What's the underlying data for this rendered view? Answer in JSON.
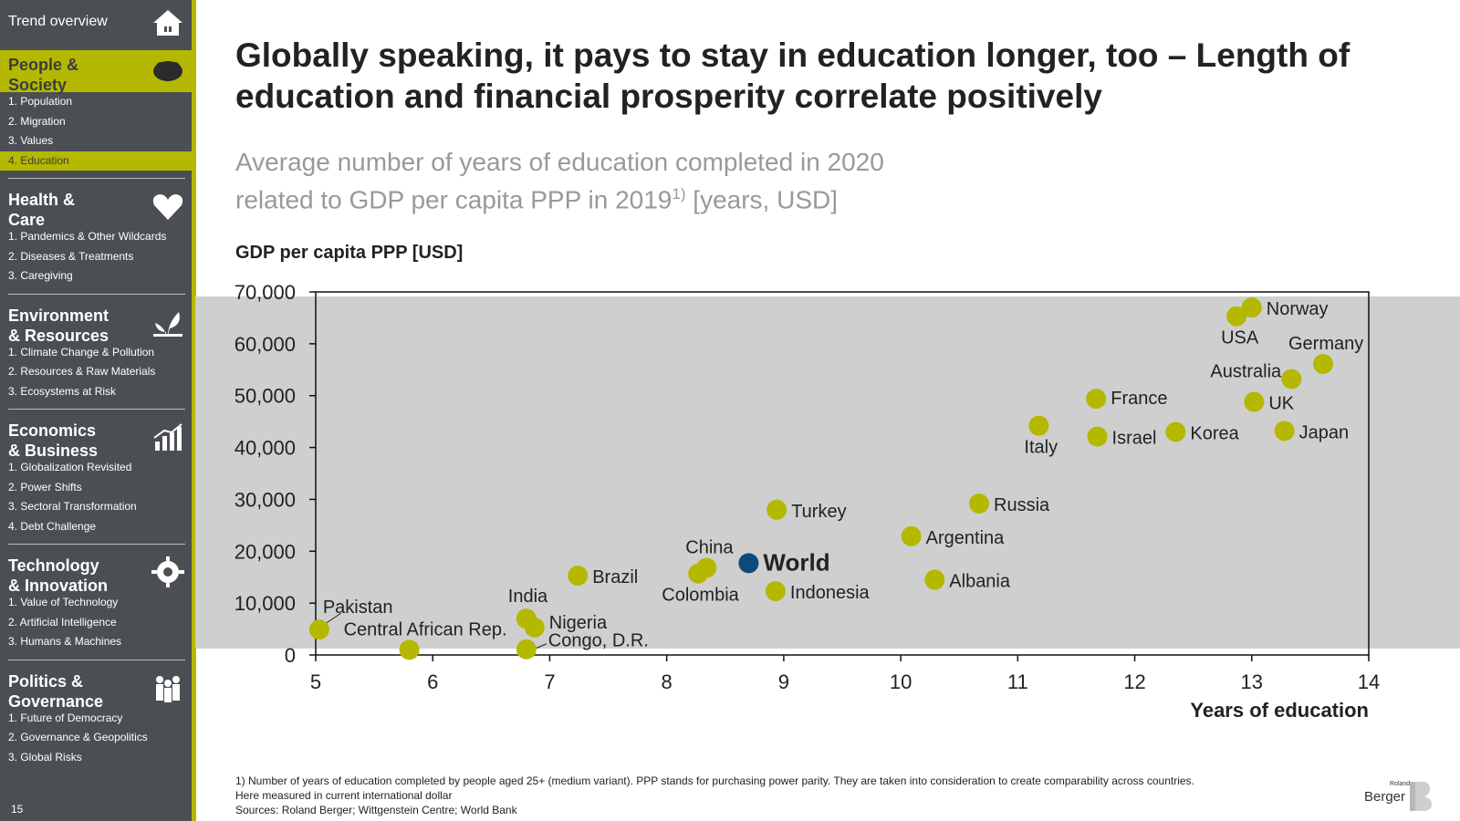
{
  "sidebar": {
    "trend_overview": "Trend overview",
    "page_number": "15",
    "sections": [
      {
        "title_line1": "People &",
        "title_line2": "Society",
        "icon": "leaf-head-icon",
        "items": [
          "1. Population",
          "2. Migration",
          "3. Values",
          "4. Education"
        ],
        "active_item": 3
      },
      {
        "title_line1": "Health &",
        "title_line2": "Care",
        "icon": "heart-icon",
        "items": [
          "1. Pandemics & Other Wildcards",
          "2. Diseases & Treatments",
          "3. Caregiving"
        ]
      },
      {
        "title_line1": "Environment",
        "title_line2": "& Resources",
        "icon": "plant-icon",
        "items": [
          "1. Climate Change & Pollution",
          "2. Resources & Raw Materials",
          "3. Ecosystems at Risk"
        ]
      },
      {
        "title_line1": "Economics",
        "title_line2": "& Business",
        "icon": "growth-chart-icon",
        "items": [
          "1. Globalization Revisited",
          "2. Power Shifts",
          "3. Sectoral Transformation",
          "4. Debt Challenge"
        ]
      },
      {
        "title_line1": "Technology",
        "title_line2": "& Innovation",
        "icon": "gear-head-icon",
        "items": [
          "1. Value of Technology",
          "2. Artificial Intelligence",
          "3. Humans & Machines"
        ]
      },
      {
        "title_line1": "Politics &",
        "title_line2": "Governance",
        "icon": "people-group-icon",
        "items": [
          "1. Future of Democracy",
          "2. Governance & Geopolitics",
          "3. Global Risks"
        ]
      }
    ]
  },
  "header": {
    "title": "Globally speaking, it pays to stay in education longer, too – Length of education and financial prosperity correlate positively",
    "subtitle_line1": "Average number of years of education completed in 2020",
    "subtitle_line2_pre": "related to GDP per capita PPP in 2019",
    "subtitle_sup": "1)",
    "subtitle_line2_post": " [years, USD]"
  },
  "chart_data": {
    "type": "scatter",
    "ylabel": "GDP per capita PPP [USD]",
    "xlabel": "Years of education",
    "xlim": [
      5,
      14
    ],
    "ylim": [
      0,
      70000
    ],
    "x_ticks": [
      "5",
      "6",
      "7",
      "8",
      "9",
      "10",
      "11",
      "12",
      "13",
      "14"
    ],
    "y_ticks": [
      "0",
      "10,000",
      "20,000",
      "30,000",
      "40,000",
      "50,000",
      "60,000",
      "70,000"
    ],
    "grid": false,
    "colors": {
      "country": "#b5b800",
      "world": "#0b4a7a"
    },
    "points": [
      {
        "label": "Pakistan",
        "x": 5.03,
        "y": 4900
      },
      {
        "label": "Central African Rep.",
        "x": 5.8,
        "y": 1000
      },
      {
        "label": "India",
        "x": 6.8,
        "y": 7000
      },
      {
        "label": "Nigeria",
        "x": 6.87,
        "y": 5300
      },
      {
        "label": "Congo, D.R.",
        "x": 6.8,
        "y": 1100
      },
      {
        "label": "Brazil",
        "x": 7.24,
        "y": 15300
      },
      {
        "label": "China",
        "x": 8.34,
        "y": 16800
      },
      {
        "label": "Colombia",
        "x": 8.27,
        "y": 15700
      },
      {
        "label": "World",
        "x": 8.7,
        "y": 17700,
        "highlight": true
      },
      {
        "label": "Turkey",
        "x": 8.94,
        "y": 28000
      },
      {
        "label": "Indonesia",
        "x": 8.93,
        "y": 12300
      },
      {
        "label": "Argentina",
        "x": 10.09,
        "y": 22900
      },
      {
        "label": "Albania",
        "x": 10.29,
        "y": 14500
      },
      {
        "label": "Russia",
        "x": 10.67,
        "y": 29200
      },
      {
        "label": "Italy",
        "x": 11.18,
        "y": 44200
      },
      {
        "label": "France",
        "x": 11.67,
        "y": 49400
      },
      {
        "label": "Israel",
        "x": 11.68,
        "y": 42100
      },
      {
        "label": "Korea",
        "x": 12.35,
        "y": 43000
      },
      {
        "label": "USA",
        "x": 12.87,
        "y": 65300
      },
      {
        "label": "Norway",
        "x": 13.0,
        "y": 67000
      },
      {
        "label": "Germany",
        "x": 13.61,
        "y": 56100
      },
      {
        "label": "Australia",
        "x": 13.34,
        "y": 53200
      },
      {
        "label": "UK",
        "x": 13.02,
        "y": 48800
      },
      {
        "label": "Japan",
        "x": 13.28,
        "y": 43200
      }
    ]
  },
  "footnote": {
    "line1": "1) Number of years of education completed by people aged 25+ (medium variant). PPP stands for purchasing power parity. They are taken into consideration to create comparability across countries.",
    "line2": "Here measured in current international dollar",
    "line3": "Sources: Roland Berger; Wittgenstein Centre; World Bank"
  },
  "logo": {
    "small": "Roland",
    "big": "Berger"
  }
}
